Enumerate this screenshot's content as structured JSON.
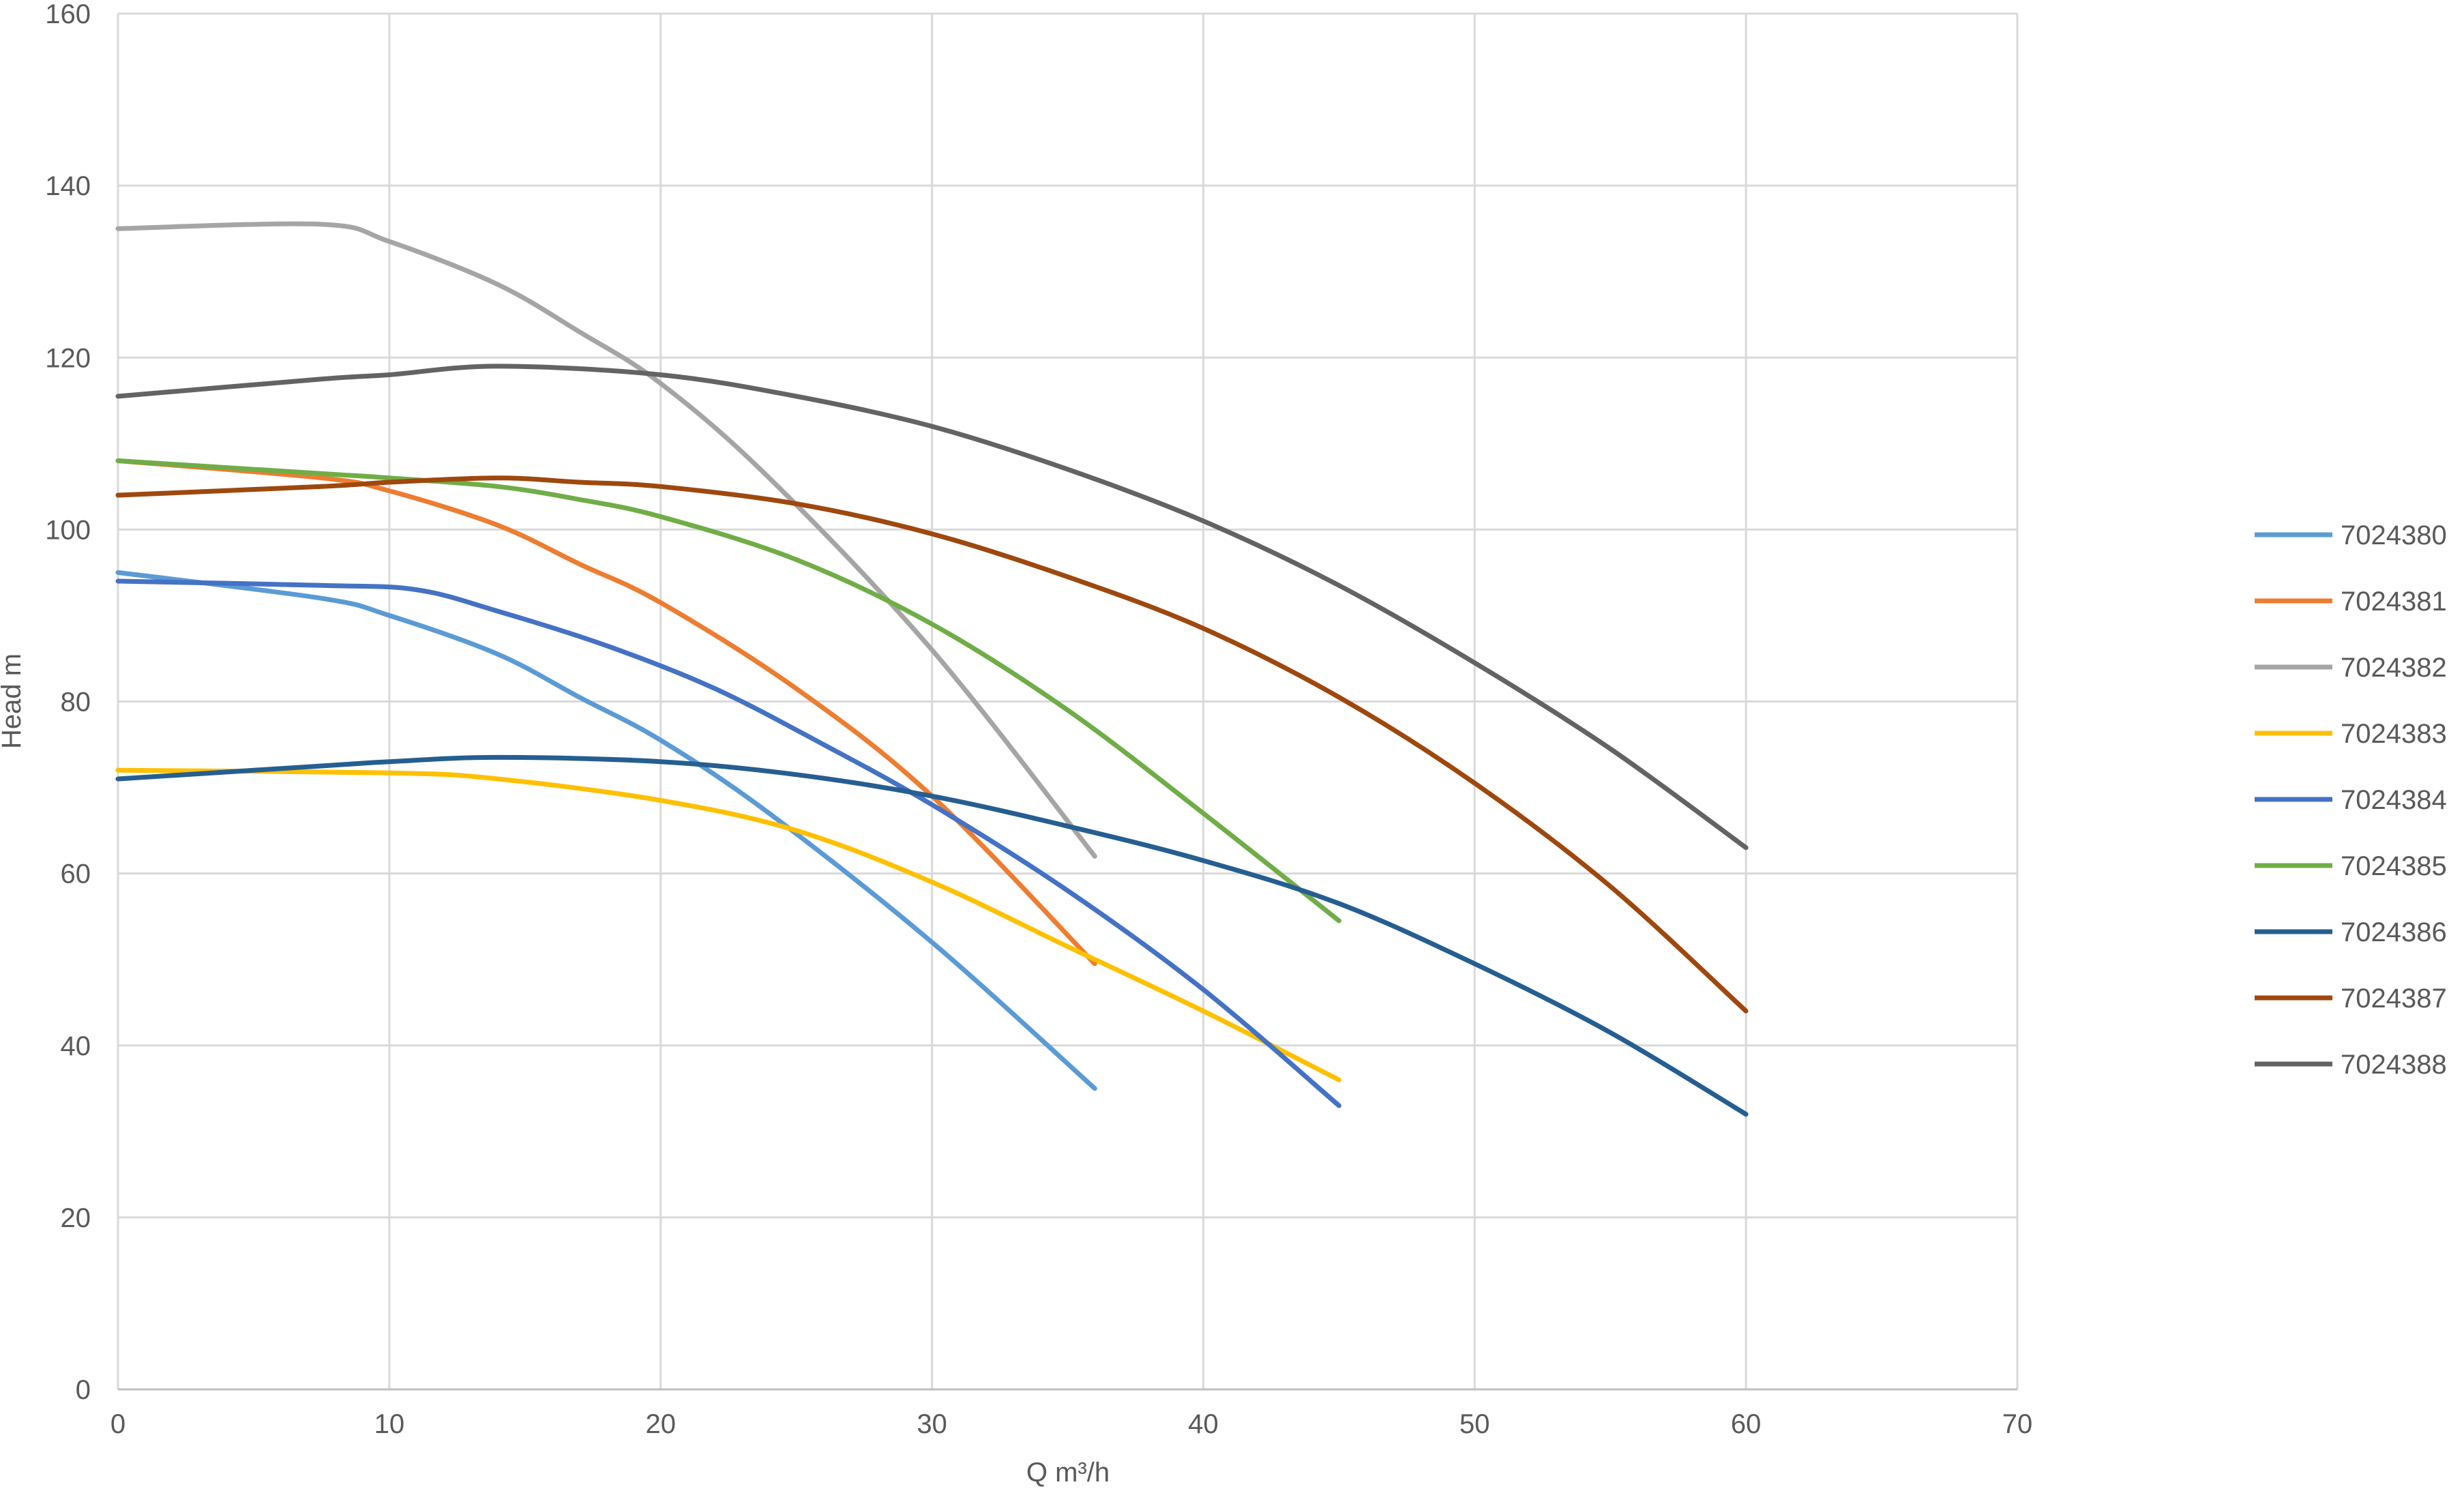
{
  "chart_data": {
    "type": "line",
    "title": "",
    "xlabel": "Q m³/h",
    "ylabel": "Head m",
    "xlim": [
      0,
      70
    ],
    "ylim": [
      0,
      160
    ],
    "xticks": [
      0,
      10,
      20,
      30,
      40,
      50,
      60,
      70
    ],
    "yticks": [
      0,
      20,
      40,
      60,
      80,
      100,
      120,
      140,
      160
    ],
    "grid": true,
    "legend_position": "right",
    "series": [
      {
        "name": "7024380",
        "color": "#5b9bd5",
        "points": [
          [
            0,
            95
          ],
          [
            7.5,
            92
          ],
          [
            10,
            90
          ],
          [
            14,
            85.5
          ],
          [
            17,
            80.5
          ],
          [
            20,
            75.5
          ],
          [
            24,
            67
          ],
          [
            30,
            52
          ],
          [
            36,
            35
          ]
        ]
      },
      {
        "name": "7024381",
        "color": "#ed7d31",
        "points": [
          [
            0,
            108
          ],
          [
            7.5,
            106
          ],
          [
            10,
            104.5
          ],
          [
            14,
            100.5
          ],
          [
            17,
            96
          ],
          [
            20,
            91.5
          ],
          [
            25,
            81.5
          ],
          [
            30,
            69
          ],
          [
            36,
            49.5
          ]
        ]
      },
      {
        "name": "7024382",
        "color": "#a5a5a5",
        "points": [
          [
            0,
            135
          ],
          [
            7.5,
            135.5
          ],
          [
            10,
            133.5
          ],
          [
            14,
            128.5
          ],
          [
            17,
            123
          ],
          [
            20,
            117
          ],
          [
            24,
            106
          ],
          [
            30,
            86
          ],
          [
            36,
            62
          ]
        ]
      },
      {
        "name": "7024383",
        "color": "#ffc000",
        "points": [
          [
            0,
            72
          ],
          [
            10,
            71.7
          ],
          [
            14,
            71
          ],
          [
            20,
            68.5
          ],
          [
            25,
            65
          ],
          [
            30,
            59
          ],
          [
            35,
            51.5
          ],
          [
            40,
            44
          ],
          [
            45,
            36
          ]
        ]
      },
      {
        "name": "7024384",
        "color": "#4472c4",
        "points": [
          [
            0,
            94
          ],
          [
            7.5,
            93.5
          ],
          [
            11,
            93
          ],
          [
            14,
            90.5
          ],
          [
            18,
            86.5
          ],
          [
            22,
            81.5
          ],
          [
            26,
            75
          ],
          [
            30,
            68
          ],
          [
            35,
            58
          ],
          [
            40,
            46.5
          ],
          [
            45,
            33
          ]
        ]
      },
      {
        "name": "7024385",
        "color": "#70ad47",
        "points": [
          [
            0,
            108
          ],
          [
            7.5,
            106.5
          ],
          [
            10,
            106
          ],
          [
            14,
            105
          ],
          [
            17,
            103.5
          ],
          [
            20,
            101.5
          ],
          [
            25,
            96.5
          ],
          [
            30,
            89
          ],
          [
            35,
            79
          ],
          [
            40,
            67
          ],
          [
            45,
            54.5
          ]
        ]
      },
      {
        "name": "7024386",
        "color": "#255e91",
        "points": [
          [
            0,
            71
          ],
          [
            7.5,
            72.5
          ],
          [
            10,
            73
          ],
          [
            14,
            73.5
          ],
          [
            20,
            73
          ],
          [
            25,
            71.5
          ],
          [
            30,
            69
          ],
          [
            35,
            65.5
          ],
          [
            40,
            61.5
          ],
          [
            45,
            56.5
          ],
          [
            50,
            49.5
          ],
          [
            55,
            41.5
          ],
          [
            60,
            32
          ]
        ]
      },
      {
        "name": "7024387",
        "color": "#9e480e",
        "points": [
          [
            0,
            104
          ],
          [
            7.5,
            105
          ],
          [
            10,
            105.5
          ],
          [
            14,
            106
          ],
          [
            17,
            105.5
          ],
          [
            20,
            105
          ],
          [
            25,
            103
          ],
          [
            30,
            99.5
          ],
          [
            35,
            94.5
          ],
          [
            40,
            88.5
          ],
          [
            45,
            80.5
          ],
          [
            50,
            70.5
          ],
          [
            55,
            58.5
          ],
          [
            60,
            44
          ]
        ]
      },
      {
        "name": "7024388",
        "color": "#636363",
        "points": [
          [
            0,
            115.5
          ],
          [
            7.5,
            117.5
          ],
          [
            10,
            118
          ],
          [
            14,
            119
          ],
          [
            20,
            118
          ],
          [
            25,
            115.5
          ],
          [
            30,
            112
          ],
          [
            35,
            107
          ],
          [
            40,
            101
          ],
          [
            45,
            93.5
          ],
          [
            50,
            84.5
          ],
          [
            55,
            74.5
          ],
          [
            60,
            63
          ]
        ]
      }
    ]
  }
}
